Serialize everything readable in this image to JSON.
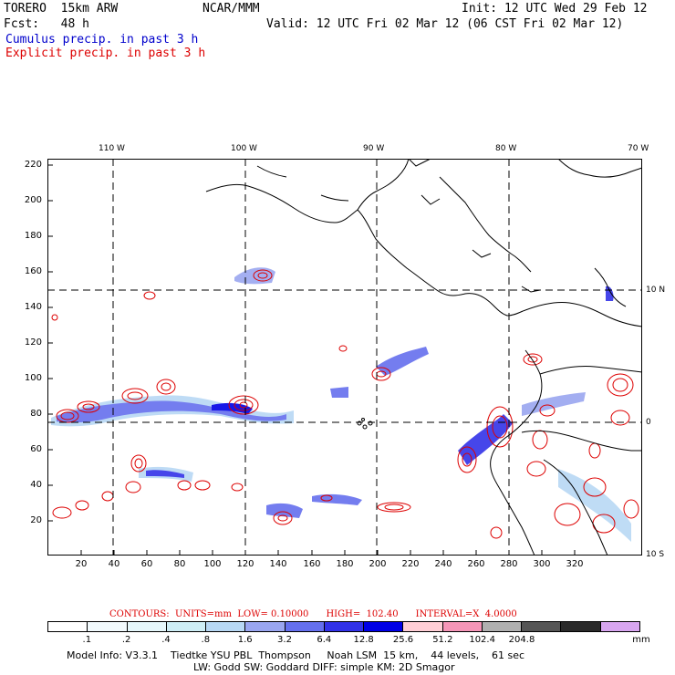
{
  "header": {
    "model": "TORERO  15km ARW",
    "org": "NCAR/MMM",
    "init": "Init: 12 UTC Wed 29 Feb 12",
    "fcst": "Fcst:   48 h",
    "valid": "Valid: 12 UTC Fri 02 Mar 12 (06 CST Fri 02 Mar 12)",
    "legend_cumulus": "Cumulus precip. in past 3 h",
    "legend_explicit": "Explicit precip. in past 3 h"
  },
  "axes": {
    "top_lon_labels": [
      "110 W",
      "100 W",
      "90 W",
      "80 W",
      "70 W"
    ],
    "right_lat_labels": [
      "10 N",
      "0",
      "10 S"
    ],
    "y_ticks": [
      "220",
      "200",
      "180",
      "160",
      "140",
      "120",
      "100",
      "80",
      "60",
      "40",
      "20"
    ],
    "x_ticks": [
      "20",
      "40",
      "60",
      "80",
      "100",
      "120",
      "140",
      "160",
      "180",
      "200",
      "220",
      "240",
      "260",
      "280",
      "300",
      "320"
    ]
  },
  "contours_line": "CONTOURS:  UNITS=mm  LOW= 0.10000      HIGH=  102.40      INTERVAL=X  4.0000",
  "colorbar": {
    "colors": [
      "#ffffff",
      "#f2fafd",
      "#e6f7fb",
      "#cfeef6",
      "#b8d8f4",
      "#9aa6f0",
      "#6570ee",
      "#3232e8",
      "#0000e6",
      "#ffcfd6",
      "#f596b8",
      "#b0b0b0",
      "#555555",
      "#2a2a2a",
      "#d8a6f0"
    ],
    "labels": [
      ".1",
      ".2",
      ".4",
      ".8",
      "1.6",
      "3.2",
      "6.4",
      "12.8",
      "25.6",
      "51.2",
      "102.4",
      "204.8"
    ],
    "units": "mm"
  },
  "footer": {
    "line1": "Model Info: V3.3.1    Tiedtke YSU PBL  Thompson     Noah LSM  15 km,    44 levels,    61 sec",
    "line2": "LW: Godd SW: Goddard DIFF: simple KM: 2D Smagor"
  }
}
